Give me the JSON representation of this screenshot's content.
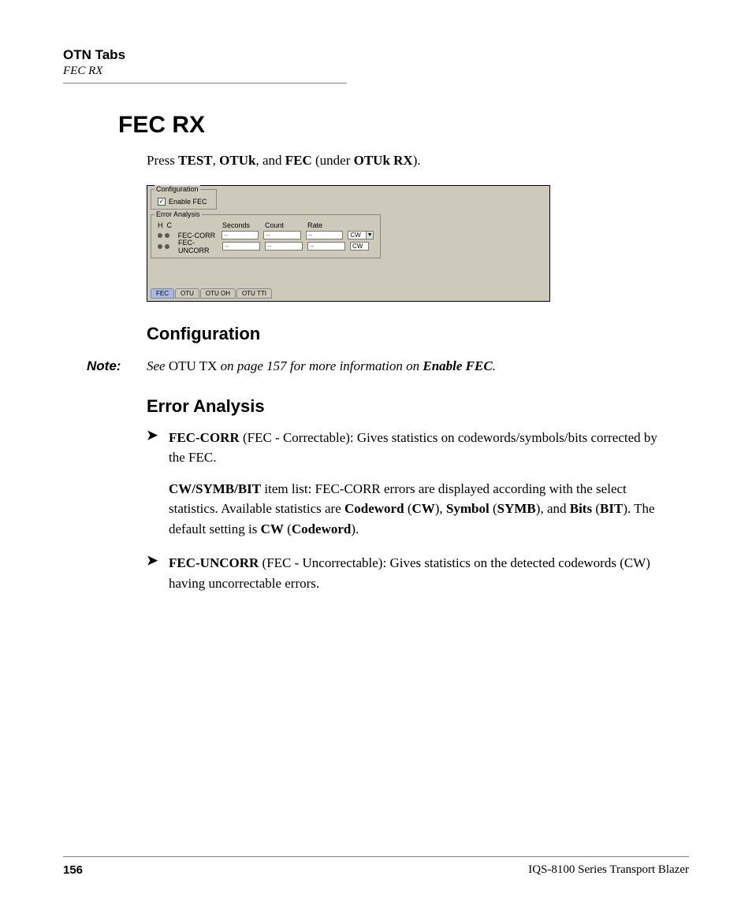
{
  "header": {
    "chapter": "OTN Tabs",
    "section": "FEC RX"
  },
  "title": "FEC RX",
  "intro": {
    "pre": "Press ",
    "b1": "TEST",
    "sep1": ", ",
    "b2": "OTUk",
    "sep2": ", and ",
    "b3": "FEC",
    "sep3": " (under ",
    "b4": "OTUk RX",
    "post": ")."
  },
  "screenshot": {
    "config_legend": "Configuration",
    "enable_fec_label": "Enable FEC",
    "enable_fec_checked": true,
    "err_legend": "Error Analysis",
    "hc_h": "H",
    "hc_c": "C",
    "col_seconds": "Seconds",
    "col_count": "Count",
    "col_rate": "Rate",
    "rows": [
      {
        "name": "FEC-CORR",
        "seconds": "--",
        "count": "--",
        "rate": "--",
        "unit": "CW",
        "has_dd": true
      },
      {
        "name": "FEC-UNCORR",
        "seconds": "--",
        "count": "--",
        "rate": "--",
        "unit": "CW",
        "has_dd": false
      }
    ],
    "tabs": [
      {
        "label": "FEC",
        "active": true
      },
      {
        "label": "OTU",
        "active": false
      },
      {
        "label": "OTU OH",
        "active": false
      },
      {
        "label": "OTU TTI",
        "active": false
      }
    ]
  },
  "h_config": "Configuration",
  "note": {
    "label": "Note:",
    "t1": "See ",
    "u1": "OTU TX",
    "t2": " on page 157 for more information on ",
    "b1": "Enable FEC",
    "t3": "."
  },
  "h_err": "Error Analysis",
  "bullet1": {
    "b1": "FEC-CORR",
    "t1": " (FEC - Correctable): Gives statistics on codewords/symbols/bits corrected by the FEC.",
    "p2_b1": "CW/SYMB/BIT",
    "p2_t1": " item list: FEC-CORR errors are displayed according with the select statistics. Available statistics are ",
    "p2_b2": "Codeword",
    "p2_t2": " (",
    "p2_b3": "CW",
    "p2_t3": "), ",
    "p2_b4": "Symbol",
    "p2_t4": " (",
    "p2_b5": "SYMB",
    "p2_t5": "), and ",
    "p2_b6": "Bits",
    "p2_t6": " (",
    "p2_b7": "BIT",
    "p2_t7": "). The default setting is ",
    "p2_b8": "CW",
    "p2_t8": " (",
    "p2_b9": "Codeword",
    "p2_t9": ")."
  },
  "bullet2": {
    "b1": "FEC-UNCORR",
    "t1": " (FEC - Uncorrectable): Gives statistics on the detected codewords (CW) having uncorrectable errors."
  },
  "footer": {
    "page": "156",
    "product": "IQS-8100 Series Transport Blazer"
  }
}
